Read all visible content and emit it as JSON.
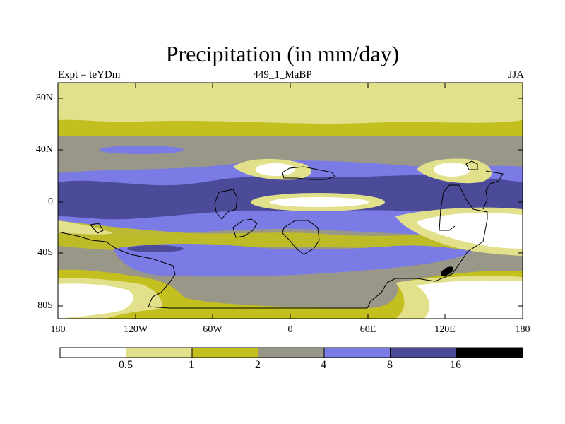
{
  "title": "Precipitation (in mm/day)",
  "subtitle_left": "Expt = teYDm",
  "subtitle_center": "449_1_MaBP",
  "subtitle_right": "JJA",
  "lat_ticks": [
    "80N",
    "40N",
    "0",
    "40S",
    "80S"
  ],
  "lon_ticks": [
    "180",
    "120W",
    "60W",
    "0",
    "60E",
    "120E",
    "180"
  ],
  "colorbar": {
    "labels": [
      "0.5",
      "1",
      "2",
      "4",
      "8",
      "16"
    ],
    "colors": [
      "#ffffff",
      "#e2e08a",
      "#c2bf1f",
      "#999888",
      "#7b7be6",
      "#4b4b9a",
      "#000000"
    ]
  },
  "chart_data": {
    "type": "contour-map",
    "variable": "Precipitation",
    "units": "mm/day",
    "season": "JJA",
    "experiment": "teYDm",
    "run": "449_1_MaBP",
    "levels": [
      0.5,
      1,
      2,
      4,
      8,
      16
    ],
    "lon_range": [
      -180,
      180
    ],
    "lat_range": [
      -90,
      90
    ]
  }
}
